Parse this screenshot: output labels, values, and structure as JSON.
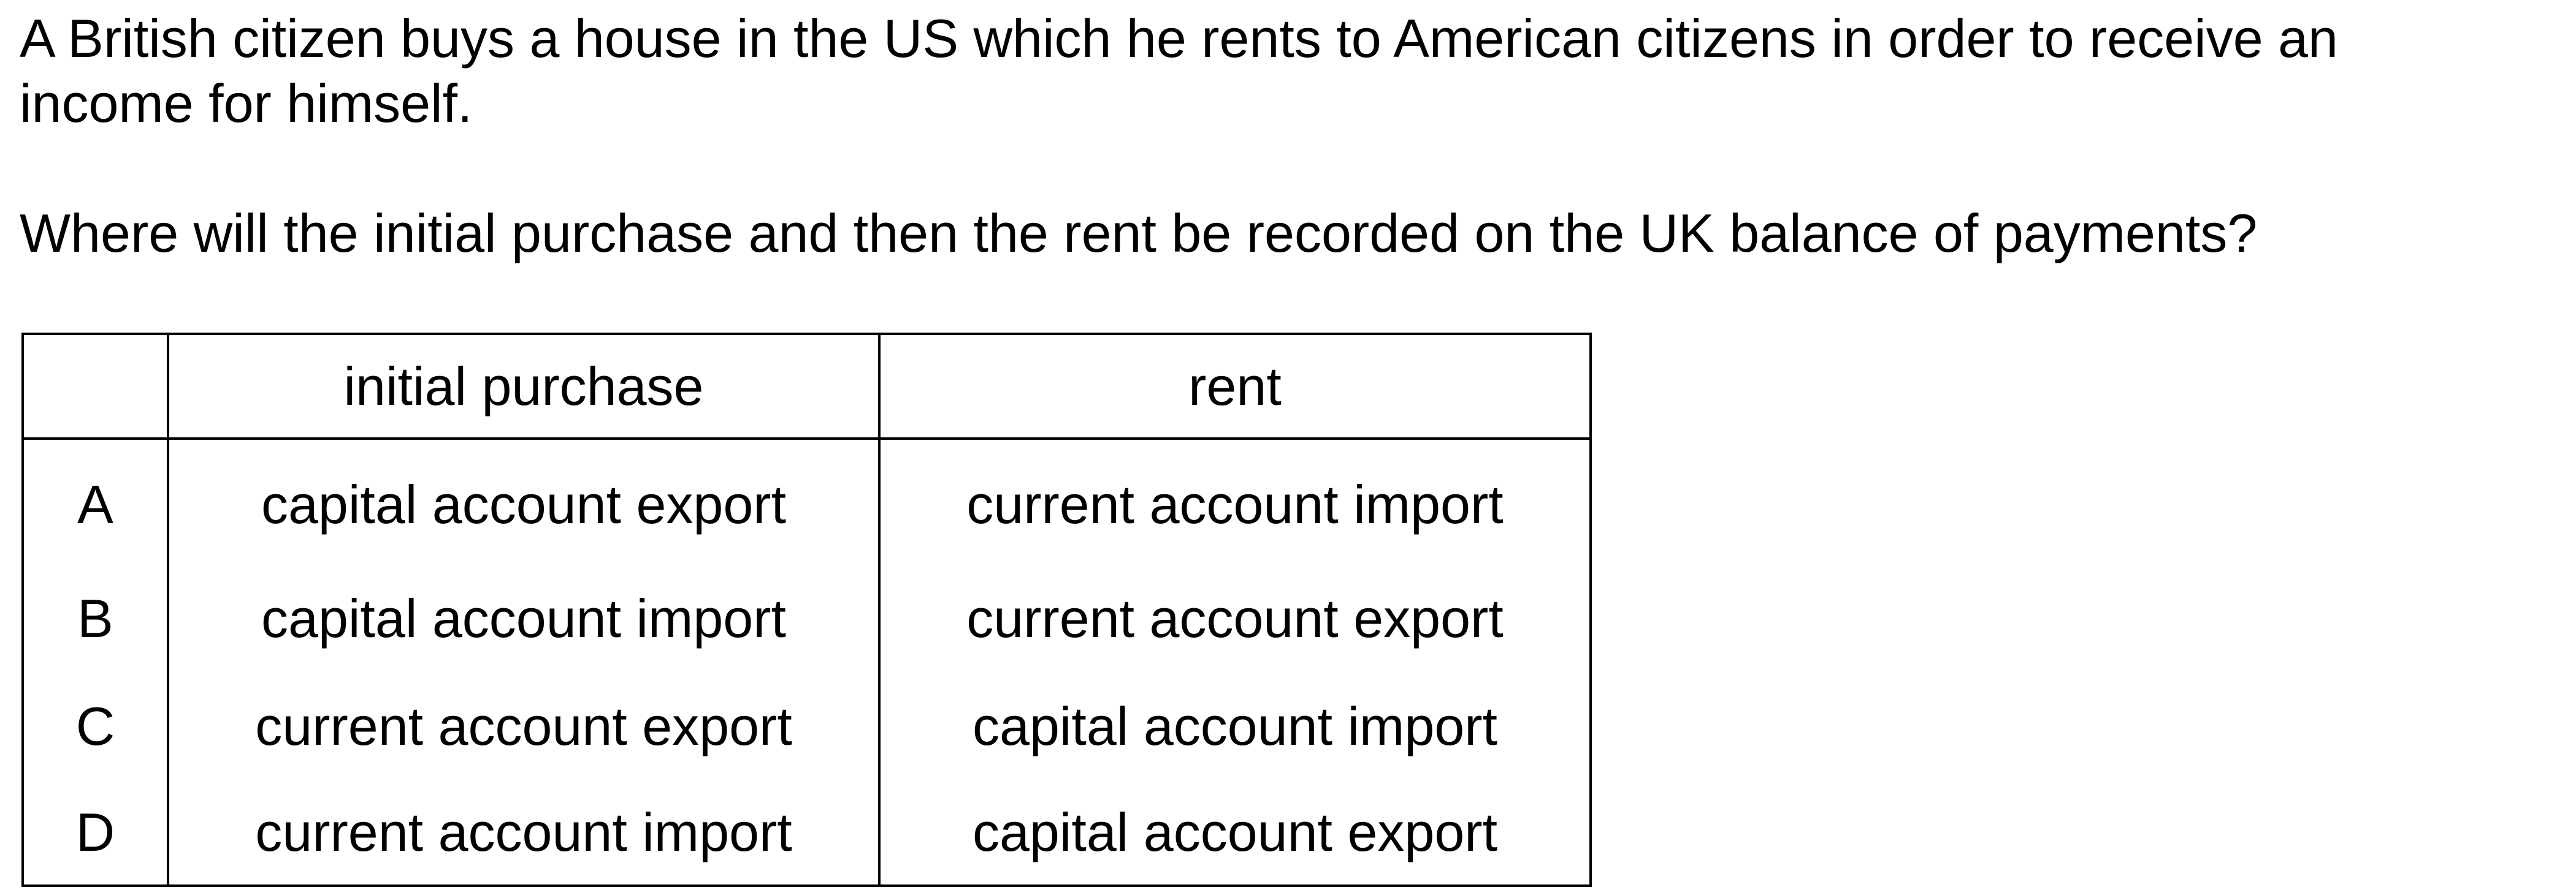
{
  "question": {
    "paragraph_1_line_1": "A British citizen buys a house in the US which he rents to American citizens in order to receive an",
    "paragraph_1_line_2": "income for himself.",
    "paragraph_2": "Where will the initial purchase and then the rent be recorded on the UK balance of payments?"
  },
  "table": {
    "headers": {
      "letter": "",
      "initial_purchase": "initial purchase",
      "rent": "rent"
    },
    "rows": [
      {
        "letter": "A",
        "initial_purchase": "capital account export",
        "rent": "current account import"
      },
      {
        "letter": "B",
        "initial_purchase": "capital account import",
        "rent": "current account export"
      },
      {
        "letter": "C",
        "initial_purchase": "current account export",
        "rent": "capital account import"
      },
      {
        "letter": "D",
        "initial_purchase": "current account import",
        "rent": "capital account export"
      }
    ]
  }
}
